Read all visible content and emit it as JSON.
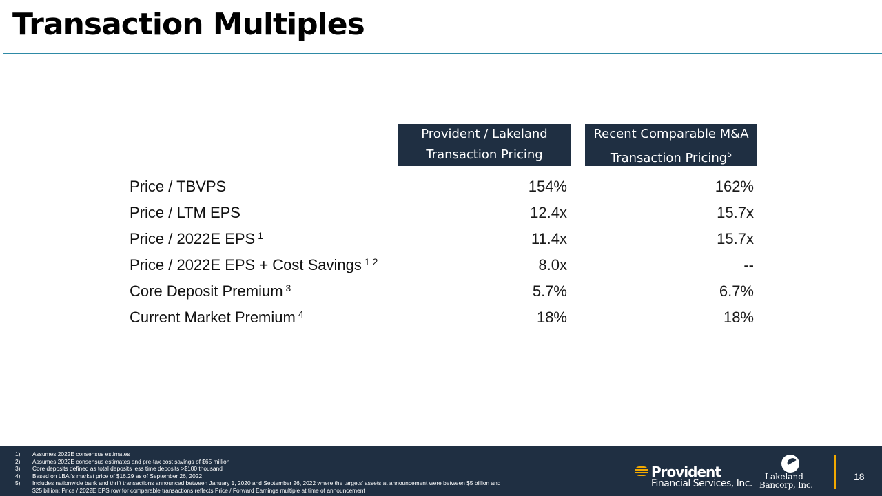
{
  "title": "Transaction Multiples",
  "colors": {
    "header_bg": "#1f2f42",
    "accent_rule": "#2e8aa6",
    "logo_gold": "#f2a900"
  },
  "columns": [
    {
      "line1": "Provident / Lakeland",
      "line2": "Transaction Pricing",
      "sup": ""
    },
    {
      "line1": "Recent Comparable M&A",
      "line2": "Transaction Pricing",
      "sup": "5"
    }
  ],
  "rows": [
    {
      "label": "Price / TBVPS",
      "sup": "",
      "provident": "154%",
      "comparable": "162%"
    },
    {
      "label": "Price / LTM EPS",
      "sup": "",
      "provident": "12.4x",
      "comparable": "15.7x"
    },
    {
      "label": "Price / 2022E EPS",
      "sup": "1",
      "provident": "11.4x",
      "comparable": "15.7x"
    },
    {
      "label": "Price / 2022E EPS + Cost Savings",
      "sup": "1 2",
      "provident": "8.0x",
      "comparable": "--"
    },
    {
      "label": "Core Deposit Premium",
      "sup": "3",
      "provident": "5.7%",
      "comparable": "6.7%"
    },
    {
      "label": "Current Market Premium",
      "sup": "4",
      "provident": "18%",
      "comparable": "18%"
    }
  ],
  "footnotes": [
    {
      "num": "1)",
      "text": "Assumes 2022E consensus estimates"
    },
    {
      "num": "2)",
      "text": "Assumes 2022E consensus estimates and pre-tax cost savings of $65 million"
    },
    {
      "num": "3)",
      "text": "Core deposits defined as total deposits less time deposits >$100 thousand"
    },
    {
      "num": "4)",
      "text": "Based on LBAI’s market price of $16.29 as of September 26, 2022"
    },
    {
      "num": "5)",
      "text": "Includes nationwide bank and thrift transactions announced between January 1, 2020 and September 26, 2022 where the targets’ assets at announcement were between $5 billion and $25 billion; Price / 2022E EPS row for comparable transactions reflects Price / Forward Earnings multiple at time of announcement"
    }
  ],
  "logos": {
    "provident_word": "Provident",
    "provident_sub": "Financial Services, Inc.",
    "lakeland_name": "Lakeland",
    "lakeland_corp": "Bancorp, Inc."
  },
  "page_number": "18"
}
